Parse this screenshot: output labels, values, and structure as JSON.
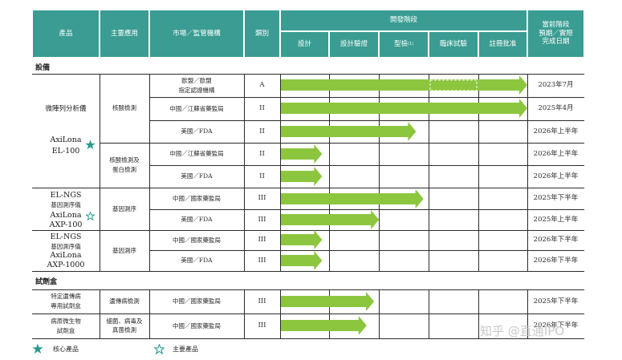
{
  "header": {
    "product": "產品",
    "application": "主要應用",
    "market": "市場／監管機構",
    "category": "類別",
    "stage_group": "開發階段",
    "stages": [
      "設計",
      "設計驗證",
      "型檢",
      "臨床試驗",
      "註冊批准"
    ],
    "type_test_note": "(1)",
    "current_lines": [
      "當前階段",
      "預期／實際",
      "完成日期"
    ]
  },
  "sections": {
    "equipment": "設備",
    "kits": "試劑盒"
  },
  "products": {
    "p1_name": "微陣列分析儀",
    "p1_model_1": "AxiLona",
    "p1_model_2": "EL-100",
    "p2_line1": "EL-NGS",
    "p2_line2": "基因測序儀",
    "p2_line3": "AxiLona",
    "p2_line4": "AXP-100",
    "p3_line1": "EL-NGS",
    "p3_line2": "基因測序儀",
    "p3_line3": "AxiLona",
    "p3_line4": "AXP-1000",
    "k1_line1": "特定遺傳病",
    "k1_line2": "專用試劑盒",
    "k2_line1": "病原微生物",
    "k2_line2": "試劑盒"
  },
  "applications": {
    "a1": "核酸檢測",
    "a2_line1": "核酸檢測及",
    "a2_line2": "蛋白檢測",
    "a3": "基因測序",
    "a4": "基因測序",
    "a5": "遺傳病檢測",
    "a6_line1": "細菌、病毒及",
    "a6_line2": "真菌檢測"
  },
  "rows": [
    {
      "market_line1": "歐盟／歐盟",
      "market_line2": "指定認證機構",
      "category": "A",
      "date": "2023年7月",
      "progress_stages": 5
    },
    {
      "market": "中國／江蘇省藥監局",
      "category": "II",
      "date": "2025年4月",
      "progress_stages": 5
    },
    {
      "market": "美國／FDA",
      "category": "II",
      "date": "2026年上半年",
      "progress_stages": 2.75
    },
    {
      "market": "中國／江蘇省藥監局",
      "category": "II",
      "date": "2026年上半年",
      "progress_stages": 0.85
    },
    {
      "market": "美國／FDA",
      "category": "II",
      "date": "2026年上半年",
      "progress_stages": 0.85
    },
    {
      "market": "中國／國家藥監局",
      "category": "III",
      "date": "2025年下半年",
      "progress_stages": 2.9
    },
    {
      "market": "美國／FDA",
      "category": "III",
      "date": "2025年上半年",
      "progress_stages": 2.0
    },
    {
      "market": "中國／國家藥監局",
      "category": "III",
      "date": "2026年下半年",
      "progress_stages": 0.85
    },
    {
      "market": "美國／FDA",
      "category": "III",
      "date": "2026年下半年",
      "progress_stages": 0.85
    },
    {
      "market": "中國／國家藥監局",
      "category": "III",
      "date": "2025年下半年",
      "progress_stages": 1.9
    },
    {
      "market": "中國／國家藥監局",
      "category": "III",
      "date": "2026年下半年",
      "progress_stages": 1.75
    }
  ],
  "legend": {
    "core": "核心產品",
    "major": "主要產品"
  },
  "watermark": "知乎 @直通IPO",
  "colors": {
    "header_bg": "#3a9c92",
    "arrow_fill": "#8cc63f",
    "star_core": "#2a9a8f",
    "star_major": "#2a9a8f"
  }
}
